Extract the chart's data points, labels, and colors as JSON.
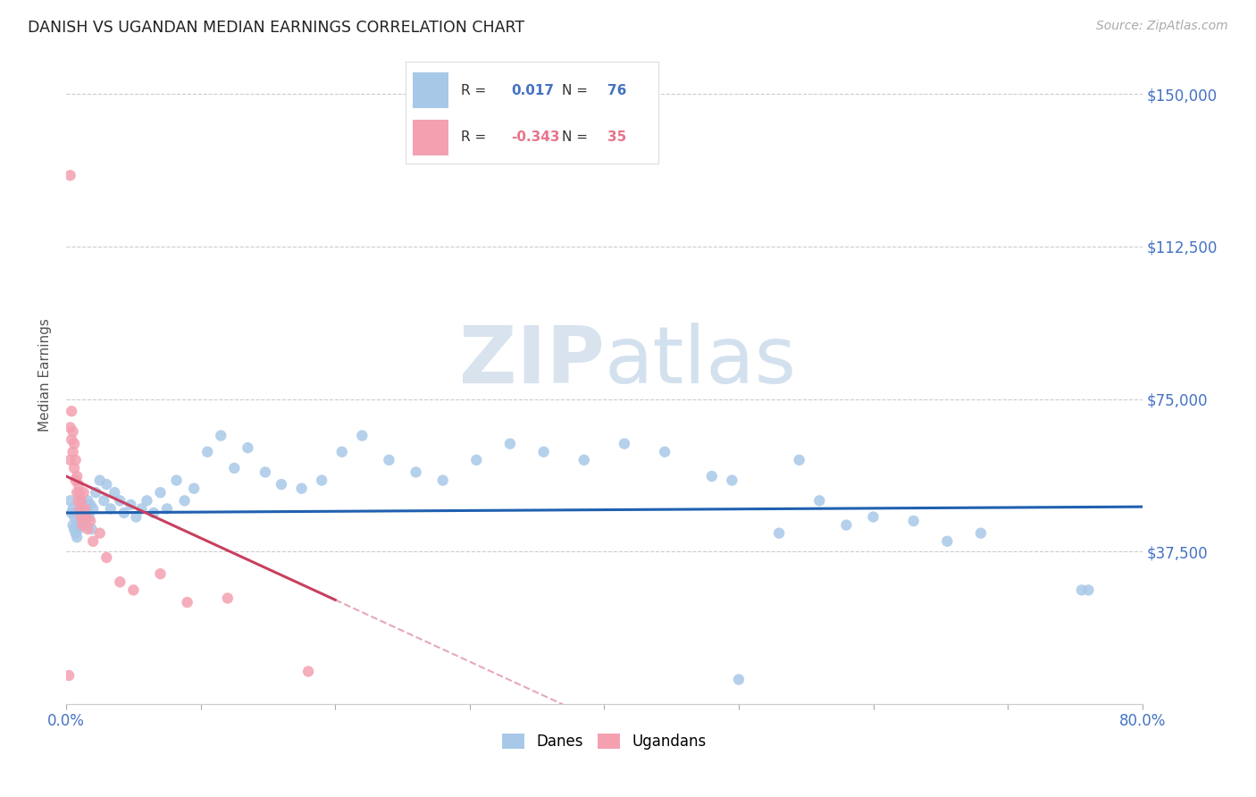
{
  "title": "DANISH VS UGANDAN MEDIAN EARNINGS CORRELATION CHART",
  "source": "Source: ZipAtlas.com",
  "ylabel": "Median Earnings",
  "xlim": [
    0.0,
    0.8
  ],
  "ylim": [
    0,
    162000
  ],
  "danes_color": "#a8c8e8",
  "ugandans_color": "#f4a0b0",
  "danes_label": "Danes",
  "ugandans_label": "Ugandans",
  "r_danes": "0.017",
  "n_danes": "76",
  "r_ugandans": "-0.343",
  "n_ugandans": "35",
  "danes_trend_color": "#2060b0",
  "ugandans_trend_color": "#c84060",
  "watermark_zip": "ZIP",
  "watermark_atlas": "atlas",
  "background_color": "#ffffff",
  "grid_color": "#cccccc",
  "tick_color": "#4472c4",
  "danes_x": [
    0.003,
    0.004,
    0.005,
    0.005,
    0.006,
    0.006,
    0.007,
    0.007,
    0.008,
    0.008,
    0.009,
    0.009,
    0.01,
    0.01,
    0.011,
    0.011,
    0.012,
    0.012,
    0.013,
    0.014,
    0.015,
    0.016,
    0.017,
    0.018,
    0.019,
    0.02,
    0.022,
    0.025,
    0.028,
    0.03,
    0.033,
    0.036,
    0.04,
    0.043,
    0.048,
    0.052,
    0.056,
    0.06,
    0.065,
    0.07,
    0.075,
    0.082,
    0.088,
    0.095,
    0.105,
    0.115,
    0.125,
    0.135,
    0.148,
    0.16,
    0.175,
    0.19,
    0.205,
    0.22,
    0.24,
    0.26,
    0.28,
    0.305,
    0.33,
    0.355,
    0.385,
    0.415,
    0.445,
    0.48,
    0.495,
    0.5,
    0.53,
    0.545,
    0.56,
    0.58,
    0.6,
    0.63,
    0.655,
    0.68,
    0.755,
    0.76
  ],
  "danes_y": [
    50000,
    47000,
    44000,
    48000,
    43000,
    46000,
    42000,
    47000,
    44000,
    41000,
    47000,
    43000,
    48000,
    44000,
    46000,
    50000,
    45000,
    48000,
    46000,
    44000,
    47000,
    50000,
    46000,
    49000,
    43000,
    48000,
    52000,
    55000,
    50000,
    54000,
    48000,
    52000,
    50000,
    47000,
    49000,
    46000,
    48000,
    50000,
    47000,
    52000,
    48000,
    55000,
    50000,
    53000,
    62000,
    66000,
    58000,
    63000,
    57000,
    54000,
    53000,
    55000,
    62000,
    66000,
    60000,
    57000,
    55000,
    60000,
    64000,
    62000,
    60000,
    64000,
    62000,
    56000,
    55000,
    6000,
    42000,
    60000,
    50000,
    44000,
    46000,
    45000,
    40000,
    42000,
    28000,
    28000
  ],
  "ugandans_x": [
    0.002,
    0.003,
    0.003,
    0.004,
    0.004,
    0.005,
    0.005,
    0.006,
    0.006,
    0.007,
    0.007,
    0.008,
    0.008,
    0.009,
    0.009,
    0.01,
    0.01,
    0.011,
    0.011,
    0.012,
    0.013,
    0.014,
    0.015,
    0.016,
    0.018,
    0.02,
    0.025,
    0.03,
    0.04,
    0.05,
    0.07,
    0.09,
    0.12,
    0.18,
    0.003
  ],
  "ugandans_y": [
    7000,
    60000,
    68000,
    65000,
    72000,
    62000,
    67000,
    58000,
    64000,
    55000,
    60000,
    52000,
    56000,
    50000,
    54000,
    48000,
    52000,
    46000,
    50000,
    44000,
    52000,
    48000,
    46000,
    43000,
    45000,
    40000,
    42000,
    36000,
    30000,
    28000,
    32000,
    25000,
    26000,
    8000,
    130000
  ]
}
